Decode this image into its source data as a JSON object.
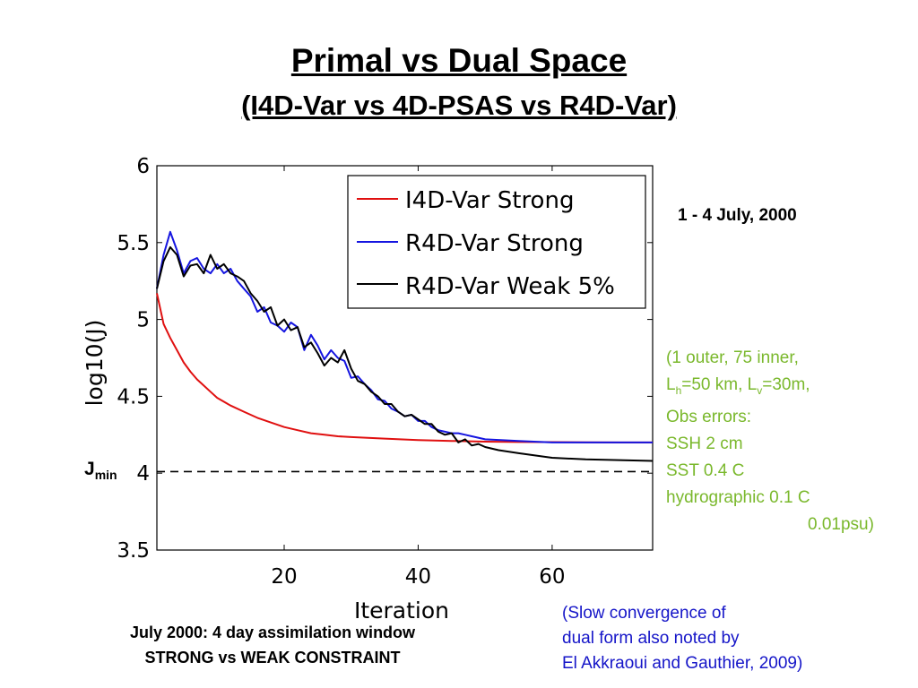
{
  "slide": {
    "title": "Primal vs Dual Space",
    "subtitle": "(I4D-Var vs 4D-PSAS vs R4D-Var)",
    "date_label": "1 - 4 July, 2000",
    "jmin_label": {
      "main": "J",
      "sub": "min"
    },
    "params": {
      "line1": "(1 outer, 75 inner,",
      "line2": {
        "l": "L",
        "h": "h",
        "mid": "=50 km, L",
        "v": "v",
        "end": "=30m,"
      },
      "line3": "Obs errors:",
      "line4": "SSH 2 cm",
      "line5": "SST 0.4 C",
      "line6": "hydrographic 0.1 C",
      "line7": "0.01psu)",
      "color": "#7ab82c"
    },
    "caption": {
      "line1": "July 2000: 4 day assimilation window",
      "line2": "STRONG vs WEAK CONSTRAINT"
    },
    "note": {
      "line1": "(Slow convergence of",
      "line2": "dual form also noted by",
      "line3": "El Akkraoui and Gauthier, 2009)",
      "color": "#1515c8"
    }
  },
  "chart_data": {
    "type": "line",
    "title": "",
    "xlabel": "Iteration",
    "ylabel": "log10(J)",
    "xlim": [
      1,
      75
    ],
    "ylim": [
      3.5,
      6
    ],
    "xticks": [
      20,
      40,
      60
    ],
    "yticks": [
      3.5,
      4,
      4.5,
      5,
      5.5,
      6
    ],
    "ytick_labels": [
      "3.5",
      "4",
      "4.5",
      "5",
      "5.5",
      "6"
    ],
    "xtick_labels": [
      "20",
      "40",
      "60"
    ],
    "grid": false,
    "legend_position": "top-right",
    "reference_line": {
      "y": 4.01,
      "style": "dashed",
      "color": "#000000",
      "label": "Jmin"
    },
    "series": [
      {
        "name": "I4D-Var Strong",
        "color": "#e01010",
        "x": [
          1,
          2,
          3,
          4,
          5,
          6,
          7,
          8,
          9,
          10,
          12,
          14,
          16,
          18,
          20,
          22,
          24,
          26,
          28,
          30,
          35,
          40,
          45,
          50,
          55,
          60,
          65,
          70,
          75
        ],
        "y": [
          5.17,
          4.97,
          4.88,
          4.8,
          4.72,
          4.66,
          4.61,
          4.57,
          4.53,
          4.49,
          4.44,
          4.4,
          4.36,
          4.33,
          4.3,
          4.28,
          4.26,
          4.25,
          4.24,
          4.235,
          4.225,
          4.215,
          4.21,
          4.205,
          4.203,
          4.202,
          4.201,
          4.2,
          4.2
        ]
      },
      {
        "name": "R4D-Var Strong",
        "color": "#1515e0",
        "x": [
          1,
          2,
          3,
          4,
          5,
          6,
          7,
          8,
          9,
          10,
          11,
          12,
          13,
          14,
          15,
          16,
          17,
          18,
          19,
          20,
          21,
          22,
          23,
          24,
          25,
          26,
          27,
          28,
          29,
          30,
          31,
          32,
          33,
          34,
          35,
          36,
          37,
          38,
          39,
          40,
          41,
          42,
          43,
          44,
          45,
          46,
          47,
          48,
          50,
          55,
          60,
          65,
          70,
          75
        ],
        "y": [
          5.2,
          5.42,
          5.57,
          5.45,
          5.3,
          5.38,
          5.4,
          5.33,
          5.3,
          5.36,
          5.3,
          5.33,
          5.25,
          5.2,
          5.15,
          5.05,
          5.08,
          4.98,
          4.96,
          4.92,
          4.98,
          4.95,
          4.8,
          4.9,
          4.83,
          4.74,
          4.8,
          4.75,
          4.73,
          4.62,
          4.63,
          4.58,
          4.54,
          4.48,
          4.47,
          4.42,
          4.4,
          4.37,
          4.38,
          4.34,
          4.34,
          4.3,
          4.28,
          4.27,
          4.26,
          4.26,
          4.25,
          4.24,
          4.22,
          4.21,
          4.2,
          4.2,
          4.2,
          4.2
        ]
      },
      {
        "name": "R4D-Var Weak 5%",
        "color": "#000000",
        "x": [
          1,
          2,
          3,
          4,
          5,
          6,
          7,
          8,
          9,
          10,
          11,
          12,
          13,
          14,
          15,
          16,
          17,
          18,
          19,
          20,
          21,
          22,
          23,
          24,
          25,
          26,
          27,
          28,
          29,
          30,
          31,
          32,
          33,
          34,
          35,
          36,
          37,
          38,
          39,
          40,
          41,
          42,
          43,
          44,
          45,
          46,
          47,
          48,
          49,
          50,
          52,
          55,
          60,
          65,
          70,
          75
        ],
        "y": [
          5.2,
          5.38,
          5.47,
          5.42,
          5.28,
          5.35,
          5.36,
          5.3,
          5.42,
          5.33,
          5.36,
          5.3,
          5.28,
          5.25,
          5.17,
          5.12,
          5.05,
          5.08,
          4.96,
          5.0,
          4.93,
          4.95,
          4.82,
          4.85,
          4.78,
          4.7,
          4.75,
          4.72,
          4.8,
          4.68,
          4.6,
          4.58,
          4.53,
          4.5,
          4.45,
          4.45,
          4.4,
          4.37,
          4.38,
          4.35,
          4.32,
          4.32,
          4.27,
          4.25,
          4.26,
          4.2,
          4.22,
          4.18,
          4.19,
          4.17,
          4.15,
          4.13,
          4.1,
          4.09,
          4.085,
          4.08
        ]
      }
    ]
  }
}
